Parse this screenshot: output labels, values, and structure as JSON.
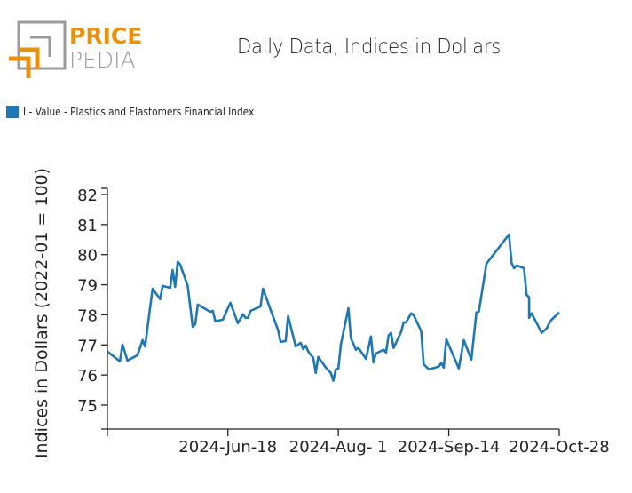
{
  "brand": {
    "name_top": "PRICE",
    "name_bottom": "PEDIA",
    "accent_color": "#e8900f",
    "gray_color": "#9a9a9a"
  },
  "chart_data": {
    "type": "line",
    "title": "Daily Data, Indices in Dollars",
    "xlabel": "",
    "ylabel": "Indices in Dollars (2022-01 = 100)",
    "ylim": [
      74.3,
      82.2
    ],
    "xlim": [
      "2024-05-01",
      "2024-10-28"
    ],
    "yticks": [
      75,
      76,
      77,
      78,
      79,
      80,
      81,
      82
    ],
    "xticks": [
      {
        "date": "2024-05-01",
        "label": ""
      },
      {
        "date": "2024-06-18",
        "label": "2024-Jun-18"
      },
      {
        "date": "2024-08-01",
        "label": "2024-Aug- 1"
      },
      {
        "date": "2024-09-14",
        "label": "2024-Sep-14"
      },
      {
        "date": "2024-10-28",
        "label": "2024-Oct-28"
      }
    ],
    "grid": false,
    "legend_position": "top-left",
    "series": [
      {
        "name": "I - Value - Plastics and Elastomers Financial Index",
        "color": "#1f77b4",
        "points": [
          [
            "2024-05-01",
            76.78
          ],
          [
            "2024-05-06",
            76.45
          ],
          [
            "2024-05-07",
            77.01
          ],
          [
            "2024-05-09",
            76.48
          ],
          [
            "2024-05-13",
            76.66
          ],
          [
            "2024-05-15",
            77.16
          ],
          [
            "2024-05-16",
            76.95
          ],
          [
            "2024-05-19",
            78.87
          ],
          [
            "2024-05-22",
            78.52
          ],
          [
            "2024-05-23",
            78.96
          ],
          [
            "2024-05-26",
            78.9
          ],
          [
            "2024-05-27",
            79.49
          ],
          [
            "2024-05-28",
            78.93
          ],
          [
            "2024-05-29",
            79.76
          ],
          [
            "2024-05-30",
            79.67
          ],
          [
            "2024-06-02",
            78.96
          ],
          [
            "2024-06-04",
            77.6
          ],
          [
            "2024-06-05",
            77.69
          ],
          [
            "2024-06-06",
            78.34
          ],
          [
            "2024-06-11",
            78.1
          ],
          [
            "2024-06-12",
            78.13
          ],
          [
            "2024-06-13",
            77.78
          ],
          [
            "2024-06-16",
            77.84
          ],
          [
            "2024-06-18",
            78.22
          ],
          [
            "2024-06-19",
            78.4
          ],
          [
            "2024-06-22",
            77.72
          ],
          [
            "2024-06-24",
            78.02
          ],
          [
            "2024-06-25",
            77.9
          ],
          [
            "2024-06-26",
            77.9
          ],
          [
            "2024-06-27",
            78.13
          ],
          [
            "2024-07-01",
            78.28
          ],
          [
            "2024-07-02",
            78.87
          ],
          [
            "2024-07-04",
            78.4
          ],
          [
            "2024-07-08",
            77.49
          ],
          [
            "2024-07-09",
            77.1
          ],
          [
            "2024-07-11",
            77.13
          ],
          [
            "2024-07-12",
            77.96
          ],
          [
            "2024-07-15",
            76.95
          ],
          [
            "2024-07-17",
            77.07
          ],
          [
            "2024-07-18",
            76.86
          ],
          [
            "2024-07-19",
            76.98
          ],
          [
            "2024-07-20",
            76.78
          ],
          [
            "2024-07-22",
            76.57
          ],
          [
            "2024-07-23",
            76.07
          ],
          [
            "2024-07-24",
            76.6
          ],
          [
            "2024-07-27",
            76.25
          ],
          [
            "2024-07-29",
            76.07
          ],
          [
            "2024-07-30",
            75.81
          ],
          [
            "2024-07-31",
            76.19
          ],
          [
            "2024-08-01",
            76.22
          ],
          [
            "2024-08-02",
            77.01
          ],
          [
            "2024-08-05",
            78.22
          ],
          [
            "2024-08-06",
            77.22
          ],
          [
            "2024-08-08",
            76.84
          ],
          [
            "2024-08-09",
            76.9
          ],
          [
            "2024-08-10",
            76.78
          ],
          [
            "2024-08-12",
            76.54
          ],
          [
            "2024-08-14",
            77.28
          ],
          [
            "2024-08-15",
            76.42
          ],
          [
            "2024-08-16",
            76.72
          ],
          [
            "2024-08-19",
            76.84
          ],
          [
            "2024-08-20",
            76.75
          ],
          [
            "2024-08-21",
            77.31
          ],
          [
            "2024-08-22",
            77.4
          ],
          [
            "2024-08-23",
            76.9
          ],
          [
            "2024-08-26",
            77.43
          ],
          [
            "2024-08-27",
            77.75
          ],
          [
            "2024-08-28",
            77.75
          ],
          [
            "2024-08-30",
            78.05
          ],
          [
            "2024-08-31",
            77.99
          ],
          [
            "2024-09-03",
            77.46
          ],
          [
            "2024-09-04",
            76.36
          ],
          [
            "2024-09-06",
            76.19
          ],
          [
            "2024-09-10",
            76.28
          ],
          [
            "2024-09-11",
            76.4
          ],
          [
            "2024-09-12",
            76.25
          ],
          [
            "2024-09-13",
            77.19
          ],
          [
            "2024-09-18",
            76.22
          ],
          [
            "2024-09-20",
            77.16
          ],
          [
            "2024-09-23",
            76.51
          ],
          [
            "2024-09-25",
            78.08
          ],
          [
            "2024-09-26",
            78.11
          ],
          [
            "2024-09-29",
            79.7
          ],
          [
            "2024-10-08",
            80.67
          ],
          [
            "2024-10-09",
            79.73
          ],
          [
            "2024-10-10",
            79.55
          ],
          [
            "2024-10-11",
            79.64
          ],
          [
            "2024-10-14",
            79.55
          ],
          [
            "2024-10-15",
            78.67
          ],
          [
            "2024-10-16",
            78.58
          ],
          [
            "2024-10-16",
            77.9
          ],
          [
            "2024-10-17",
            78.05
          ],
          [
            "2024-10-21",
            77.4
          ],
          [
            "2024-10-23",
            77.55
          ],
          [
            "2024-10-24",
            77.72
          ],
          [
            "2024-10-25",
            77.84
          ],
          [
            "2024-10-28",
            78.08
          ]
        ]
      }
    ]
  }
}
